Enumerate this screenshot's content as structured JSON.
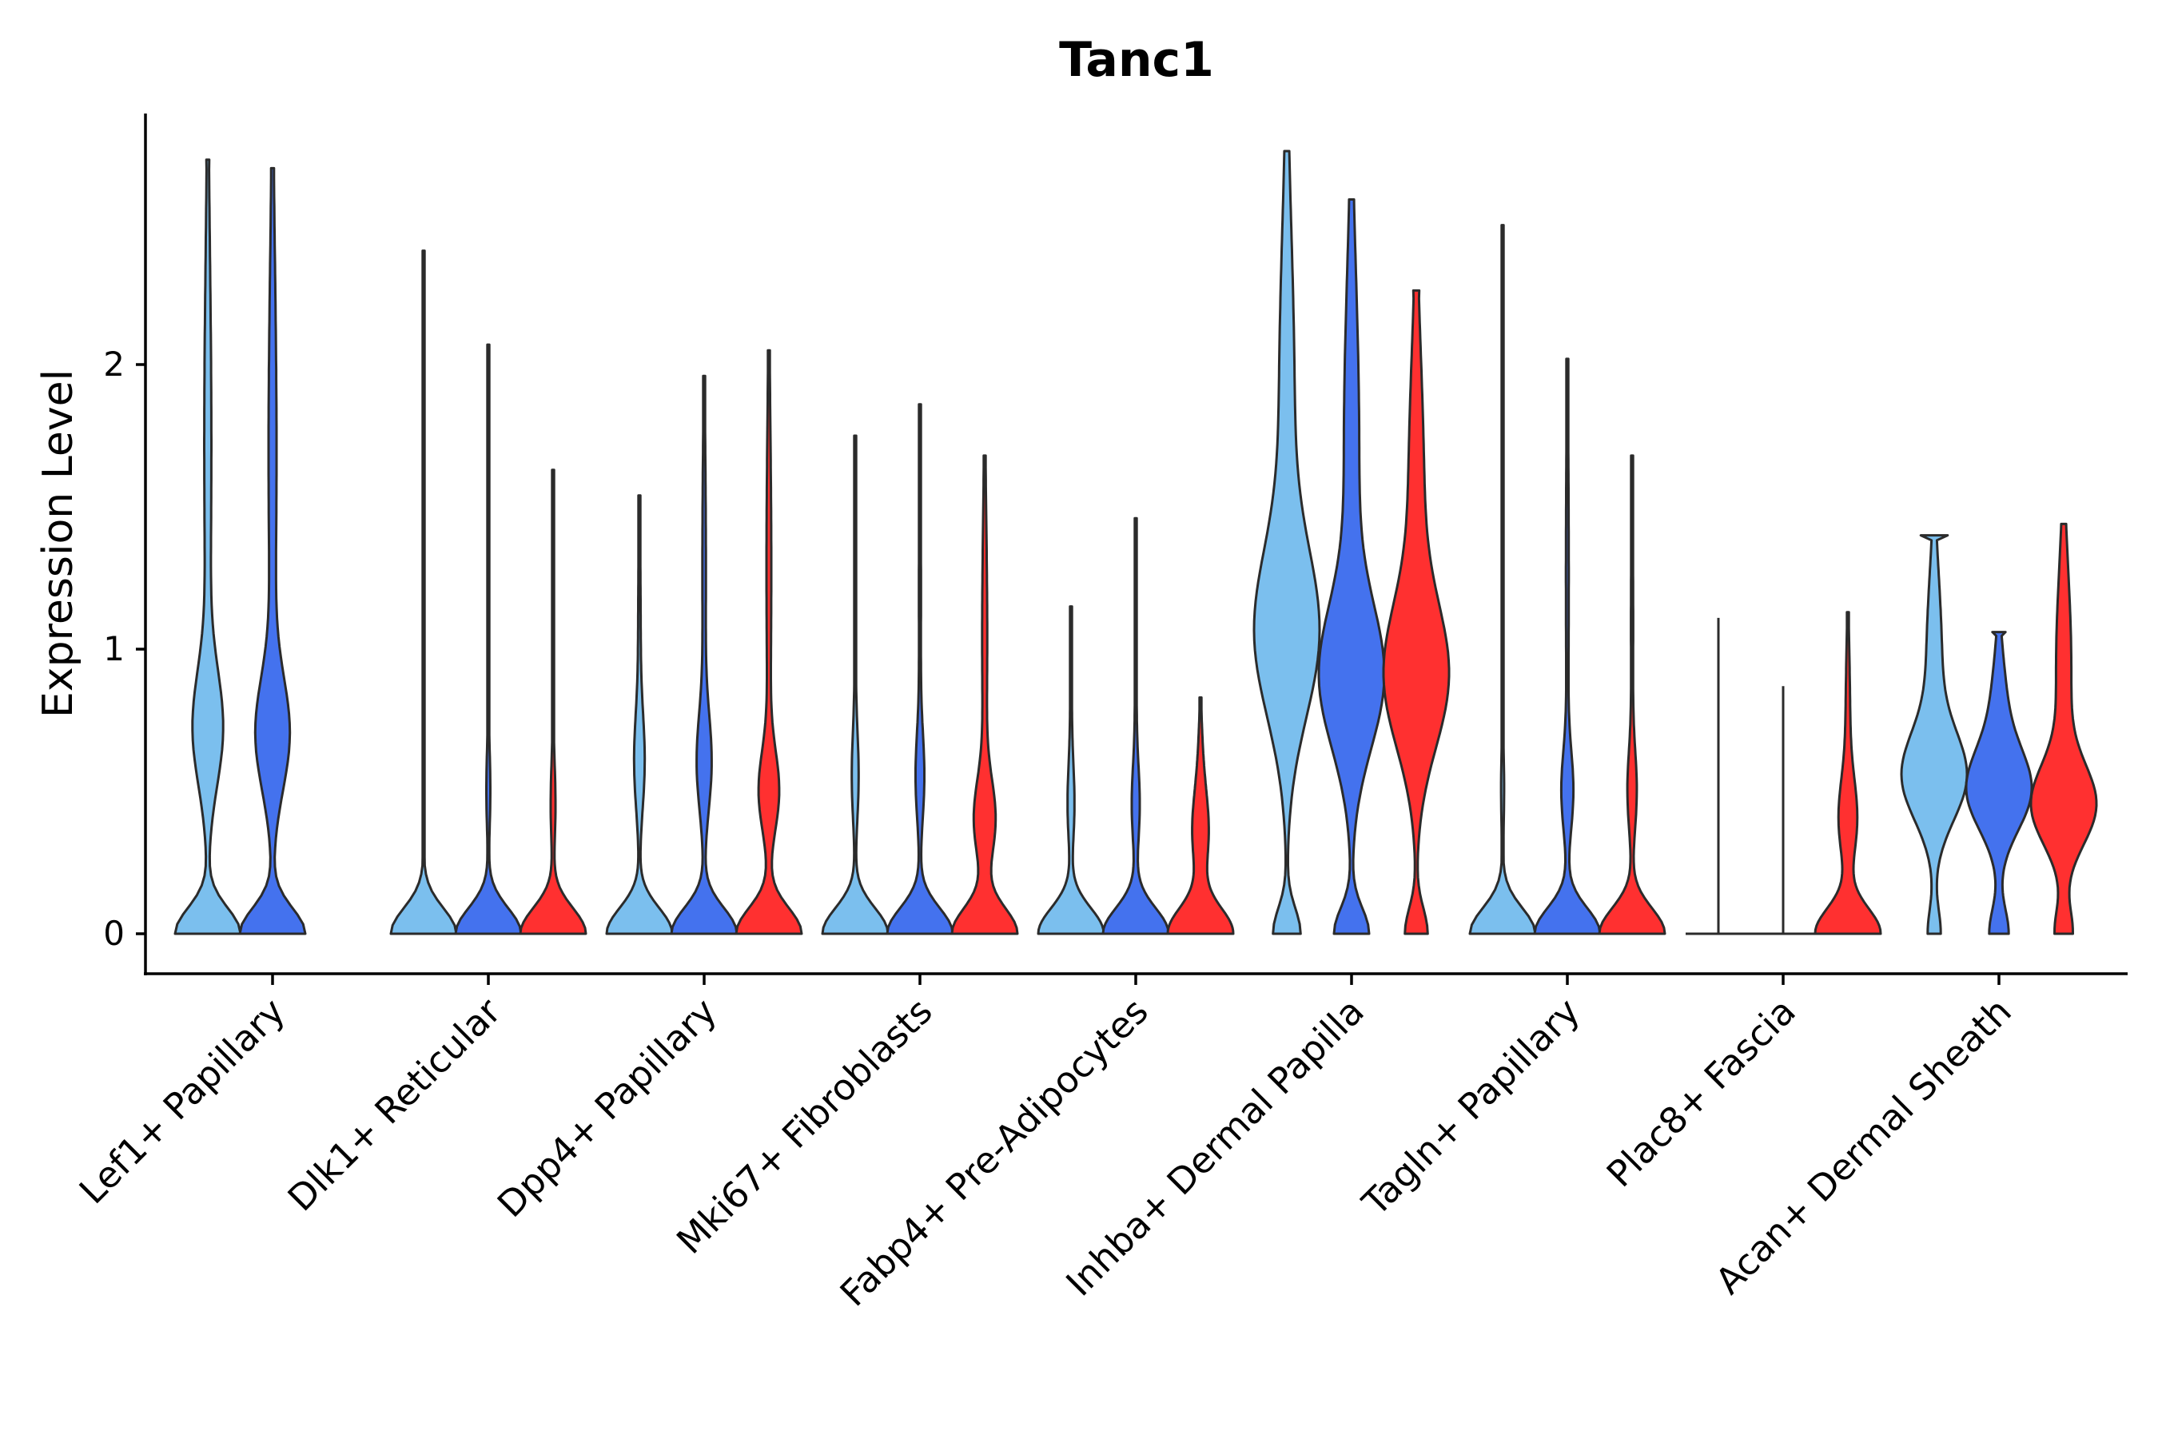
{
  "chart_data": {
    "type": "violin",
    "title": "Tanc1",
    "xlabel": "",
    "ylabel": "Expression Level",
    "ylim": [
      -0.14,
      2.9
    ],
    "yticks": [
      0,
      1,
      2
    ],
    "grid": false,
    "legend": "none",
    "categories": [
      "Lef1+ Papillary",
      "Dlk1+ Reticular",
      "Dpp4+ Papillary",
      "Mki67+ Fibroblasts",
      "Fabp4+ Pre-Adipocytes",
      "Inhba+ Dermal Papilla",
      "Tagln+ Papillary",
      "Plac8+ Fascia",
      "Acan+ Dermal Sheath"
    ],
    "groups": [
      {
        "name": "group-1",
        "color": "#7BBFEE"
      },
      {
        "name": "group-2",
        "color": "#4472EE"
      },
      {
        "name": "group-3",
        "color": "#FF3030"
      }
    ],
    "violins": [
      [
        {
          "max": 2.72,
          "zero": 0.55,
          "mode": 0.72,
          "mwidth": 0.24,
          "top": 0.045,
          "flat": false
        },
        {
          "max": 2.69,
          "zero": 0.55,
          "mode": 0.7,
          "mwidth": 0.27,
          "top": 0.045,
          "flat": false
        },
        null
      ],
      [
        {
          "max": 2.4,
          "zero": 0.92,
          "mode": 0.5,
          "mwidth": 0.025,
          "top": 0.02,
          "flat": false
        },
        {
          "max": 2.07,
          "zero": 0.88,
          "mode": 0.5,
          "mwidth": 0.05,
          "top": 0.02,
          "flat": false
        },
        {
          "max": 1.63,
          "zero": 0.88,
          "mode": 0.45,
          "mwidth": 0.06,
          "top": 0.02,
          "flat": false
        }
      ],
      [
        {
          "max": 1.54,
          "zero": 0.8,
          "mode": 0.6,
          "mwidth": 0.12,
          "top": 0.02,
          "flat": false
        },
        {
          "max": 1.96,
          "zero": 0.75,
          "mode": 0.6,
          "mwidth": 0.16,
          "top": 0.02,
          "flat": false
        },
        {
          "max": 2.05,
          "zero": 0.75,
          "mode": 0.5,
          "mwidth": 0.22,
          "top": 0.02,
          "flat": false
        }
      ],
      [
        {
          "max": 1.75,
          "zero": 0.82,
          "mode": 0.55,
          "mwidth": 0.08,
          "top": 0.02,
          "flat": false
        },
        {
          "max": 1.86,
          "zero": 0.8,
          "mode": 0.55,
          "mwidth": 0.1,
          "top": 0.02,
          "flat": false
        },
        {
          "max": 1.68,
          "zero": 0.8,
          "mode": 0.4,
          "mwidth": 0.25,
          "top": 0.02,
          "flat": false
        }
      ],
      [
        {
          "max": 1.15,
          "zero": 0.92,
          "mode": 0.45,
          "mwidth": 0.09,
          "top": 0.02,
          "flat": false
        },
        {
          "max": 1.46,
          "zero": 0.88,
          "mode": 0.45,
          "mwidth": 0.1,
          "top": 0.02,
          "flat": false
        },
        {
          "max": 0.83,
          "zero": 0.85,
          "mode": 0.35,
          "mwidth": 0.2,
          "top": 0.02,
          "flat": false
        }
      ],
      [
        {
          "max": 2.75,
          "zero": 0.25,
          "mode": 1.05,
          "mwidth": 0.55,
          "top": 0.03,
          "flat": false
        },
        {
          "max": 2.58,
          "zero": 0.3,
          "mode": 0.9,
          "mwidth": 0.52,
          "top": 0.03,
          "flat": false
        },
        {
          "max": 2.26,
          "zero": 0.3,
          "mode": 0.9,
          "mwidth": 0.8,
          "top": 0.09,
          "flat": false
        }
      ],
      [
        {
          "max": 2.49,
          "zero": 0.7,
          "mode": 0.5,
          "mwidth": 0.03,
          "top": 0.02,
          "flat": false
        },
        {
          "max": 2.02,
          "zero": 0.7,
          "mode": 0.5,
          "mwidth": 0.12,
          "top": 0.02,
          "flat": false
        },
        {
          "max": 1.68,
          "zero": 0.75,
          "mode": 0.5,
          "mwidth": 0.1,
          "top": 0.02,
          "flat": false
        }
      ],
      [
        {
          "max": 1.11,
          "zero": 1.0,
          "mode": 0,
          "mwidth": 0,
          "top": 0,
          "flat": true
        },
        {
          "max": 0.87,
          "zero": 1.0,
          "mode": 0,
          "mwidth": 0,
          "top": 0,
          "flat": true
        },
        {
          "max": 1.13,
          "zero": 0.75,
          "mode": 0.4,
          "mwidth": 0.2,
          "top": 0.02,
          "flat": false
        }
      ],
      [
        {
          "max": 1.4,
          "zero": 0.15,
          "mode": 0.55,
          "mwidth": 0.7,
          "top": 0.41,
          "flat": false
        },
        {
          "max": 1.06,
          "zero": 0.25,
          "mode": 0.5,
          "mwidth": 0.78,
          "top": 0.2,
          "flat": false
        },
        {
          "max": 1.44,
          "zero": 0.25,
          "mode": 0.45,
          "mwidth": 0.85,
          "top": 0.06,
          "flat": false
        }
      ]
    ]
  }
}
